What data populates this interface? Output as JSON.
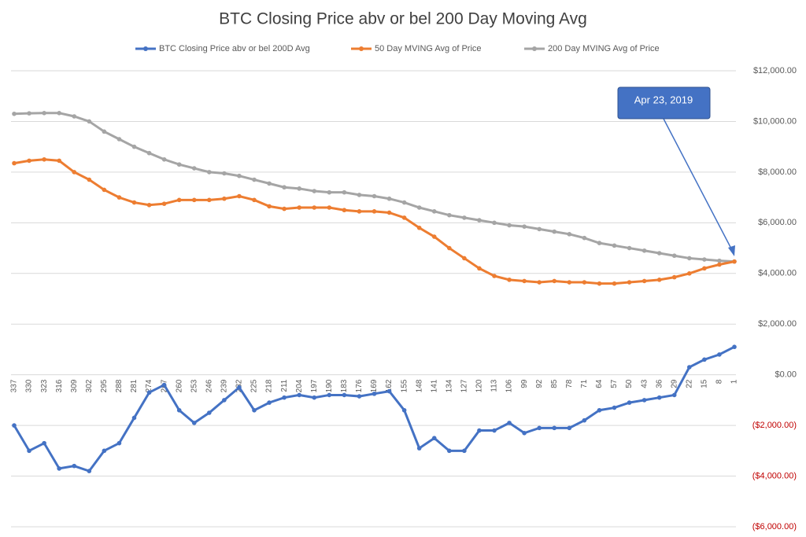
{
  "chart_data": {
    "type": "line",
    "title": "BTC Closing  Price abv or bel 200 Day Moving Avg",
    "categories": [
      "337",
      "330",
      "323",
      "316",
      "309",
      "302",
      "295",
      "288",
      "281",
      "274",
      "267",
      "260",
      "253",
      "246",
      "239",
      "232",
      "225",
      "218",
      "211",
      "204",
      "197",
      "190",
      "183",
      "176",
      "169",
      "162",
      "155",
      "148",
      "141",
      "134",
      "127",
      "120",
      "113",
      "106",
      "99",
      "92",
      "85",
      "78",
      "71",
      "64",
      "57",
      "50",
      "43",
      "36",
      "29",
      "22",
      "15",
      "8",
      "1"
    ],
    "series": [
      {
        "name": "BTC Closing  Price abv or bel 200D Avg",
        "color": "#4472c4",
        "values": [
          -2000,
          -3000,
          -2700,
          -3700,
          -3600,
          -3800,
          -3000,
          -2700,
          -1700,
          -700,
          -400,
          -1400,
          -1900,
          -1500,
          -1000,
          -500,
          -1400,
          -1100,
          -900,
          -800,
          -900,
          -800,
          -800,
          -850,
          -750,
          -650,
          -1400,
          -2900,
          -2500,
          -3000,
          -3000,
          -2200,
          -2200,
          -1900,
          -2300,
          -2100,
          -2100,
          -2100,
          -1800,
          -1400,
          -1300,
          -1100,
          -1000,
          -900,
          -800,
          300,
          600,
          800,
          1100
        ]
      },
      {
        "name": "50 Day MVING Avg of  Price",
        "color": "#ed7d31",
        "values": [
          8350,
          8450,
          8500,
          8450,
          8000,
          7700,
          7300,
          7000,
          6800,
          6700,
          6750,
          6900,
          6900,
          6900,
          6950,
          7050,
          6900,
          6650,
          6550,
          6600,
          6600,
          6600,
          6500,
          6450,
          6450,
          6400,
          6200,
          5800,
          5450,
          5000,
          4600,
          4200,
          3900,
          3750,
          3700,
          3650,
          3700,
          3650,
          3650,
          3600,
          3600,
          3650,
          3700,
          3750,
          3850,
          4000,
          4200,
          4350,
          4470
        ]
      },
      {
        "name": "200 Day MVING Avg of  Price",
        "color": "#a5a5a5",
        "values": [
          10300,
          10320,
          10330,
          10330,
          10200,
          10000,
          9600,
          9300,
          9000,
          8750,
          8500,
          8300,
          8150,
          8000,
          7950,
          7850,
          7700,
          7550,
          7400,
          7350,
          7250,
          7200,
          7200,
          7100,
          7050,
          6950,
          6800,
          6600,
          6450,
          6300,
          6200,
          6100,
          6000,
          5900,
          5850,
          5750,
          5650,
          5550,
          5400,
          5200,
          5100,
          5000,
          4900,
          4800,
          4700,
          4600,
          4550,
          4500,
          4470
        ]
      }
    ],
    "ylim": [
      -6000,
      12000
    ],
    "yticks": [
      {
        "value": -6000,
        "label": "($6,000.00)"
      },
      {
        "value": -4000,
        "label": "($4,000.00)"
      },
      {
        "value": -2000,
        "label": "($2,000.00)"
      },
      {
        "value": 0,
        "label": "$0.00"
      },
      {
        "value": 2000,
        "label": "$2,000.00"
      },
      {
        "value": 4000,
        "label": "$4,000.00"
      },
      {
        "value": 6000,
        "label": "$6,000.00"
      },
      {
        "value": 8000,
        "label": "$8,000.00"
      },
      {
        "value": 10000,
        "label": "$10,000.00"
      },
      {
        "value": 12000,
        "label": "$12,000.00"
      }
    ],
    "negative_tick_color": "#c00000",
    "grid": true,
    "legend": "top",
    "annotation": "Apr 23, 2019"
  }
}
